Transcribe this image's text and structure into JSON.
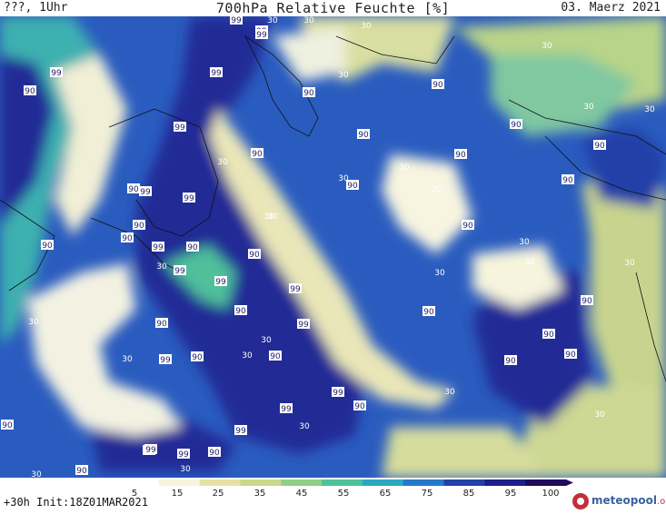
{
  "header": {
    "left": "???, 1Uhr",
    "title": "700hPa Relative Feuchte [%]",
    "date": "03. Maerz 2021"
  },
  "footer": {
    "run": "+30h  Init:18Z01MAR2021",
    "logo_main": "meteopool",
    "logo_tld": ".org"
  },
  "colorbar": {
    "ticks": [
      "5",
      "15",
      "25",
      "35",
      "45",
      "55",
      "65",
      "75",
      "85",
      "95",
      "100"
    ],
    "colors": [
      "#ffffff",
      "#f6f4dc",
      "#e6e2a6",
      "#c9d98a",
      "#93cd8a",
      "#4fc09a",
      "#2aa7c0",
      "#2878c8",
      "#2440a8",
      "#1f1f86",
      "#200a5a"
    ]
  },
  "map_labels": [
    {
      "text": "99"
    },
    {
      "text": "99"
    },
    {
      "text": "30"
    },
    {
      "text": "30"
    },
    {
      "text": "30"
    },
    {
      "text": "30"
    },
    {
      "text": "30"
    },
    {
      "text": "30"
    },
    {
      "text": "99"
    },
    {
      "text": "99"
    },
    {
      "text": "90"
    },
    {
      "text": "30"
    },
    {
      "text": "90"
    },
    {
      "text": "90"
    },
    {
      "text": "99"
    },
    {
      "text": "90"
    },
    {
      "text": "30"
    },
    {
      "text": "30"
    },
    {
      "text": "99"
    },
    {
      "text": "30"
    },
    {
      "text": "90"
    },
    {
      "text": "30"
    },
    {
      "text": "30"
    },
    {
      "text": "90"
    },
    {
      "text": "90"
    },
    {
      "text": "30"
    },
    {
      "text": "90"
    },
    {
      "text": "30"
    },
    {
      "text": "90"
    },
    {
      "text": "99"
    },
    {
      "text": "90"
    },
    {
      "text": "30"
    },
    {
      "text": "30"
    },
    {
      "text": "90"
    },
    {
      "text": "90"
    },
    {
      "text": "99"
    },
    {
      "text": "90"
    },
    {
      "text": "99"
    },
    {
      "text": "30"
    },
    {
      "text": "90"
    },
    {
      "text": "99"
    },
    {
      "text": "90"
    },
    {
      "text": "90"
    },
    {
      "text": "99"
    },
    {
      "text": "90"
    },
    {
      "text": "90"
    },
    {
      "text": "30"
    },
    {
      "text": "99"
    },
    {
      "text": "30"
    },
    {
      "text": "99"
    },
    {
      "text": "90"
    },
    {
      "text": "30"
    },
    {
      "text": "90"
    },
    {
      "text": "90"
    },
    {
      "text": "99"
    },
    {
      "text": "90"
    },
    {
      "text": "30"
    },
    {
      "text": "90"
    },
    {
      "text": "30"
    },
    {
      "text": "90"
    },
    {
      "text": "99"
    },
    {
      "text": "90"
    },
    {
      "text": "99"
    },
    {
      "text": "90"
    },
    {
      "text": "99"
    },
    {
      "text": "30"
    },
    {
      "text": "90"
    },
    {
      "text": "99"
    },
    {
      "text": "30"
    },
    {
      "text": "99"
    },
    {
      "text": "90"
    },
    {
      "text": "30"
    },
    {
      "text": "90"
    },
    {
      "text": "30"
    },
    {
      "text": "90"
    },
    {
      "text": "90"
    },
    {
      "text": "30"
    }
  ]
}
